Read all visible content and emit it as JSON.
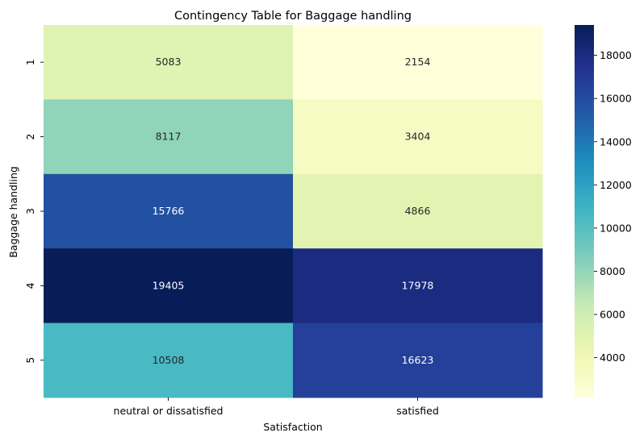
{
  "chart_data": {
    "type": "heatmap",
    "title": "Contingency Table for Baggage handling",
    "xlabel": "Satisfaction",
    "ylabel": "Baggage handling",
    "x_categories": [
      "neutral or dissatisfied",
      "satisfied"
    ],
    "y_categories": [
      "1",
      "2",
      "3",
      "4",
      "5"
    ],
    "values": [
      [
        5083,
        2154
      ],
      [
        8117,
        3404
      ],
      [
        15766,
        4866
      ],
      [
        19405,
        17978
      ],
      [
        10508,
        16623
      ]
    ],
    "colormap": "YlGnBu",
    "colorbar": {
      "range": [
        2154,
        19405
      ],
      "ticks": [
        4000,
        6000,
        8000,
        10000,
        12000,
        14000,
        16000,
        18000
      ],
      "tick_labels": [
        "4000",
        "6000",
        "8000",
        "10000",
        "12000",
        "14000",
        "16000",
        "18000"
      ]
    },
    "annotations": true
  }
}
